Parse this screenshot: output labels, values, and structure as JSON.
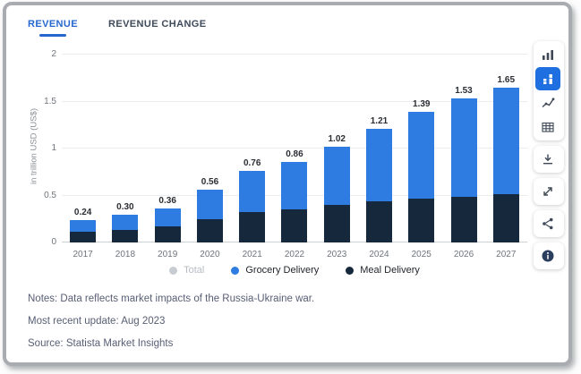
{
  "tabs": [
    {
      "label": "REVENUE",
      "active": true
    },
    {
      "label": "REVENUE CHANGE",
      "active": false
    }
  ],
  "chart_data": {
    "type": "bar",
    "stacked": true,
    "title": "",
    "ylabel": "in trillion USD (US$)",
    "categories": [
      "2017",
      "2018",
      "2019",
      "2020",
      "2021",
      "2022",
      "2023",
      "2024",
      "2025",
      "2026",
      "2027"
    ],
    "series": [
      {
        "name": "Meal Delivery",
        "color": "#16283c",
        "values": [
          0.11,
          0.13,
          0.17,
          0.25,
          0.32,
          0.35,
          0.4,
          0.44,
          0.47,
          0.49,
          0.51
        ]
      },
      {
        "name": "Grocery Delivery",
        "color": "#2e7ce2",
        "values": [
          0.13,
          0.17,
          0.19,
          0.31,
          0.44,
          0.51,
          0.62,
          0.77,
          0.92,
          1.04,
          1.14
        ]
      }
    ],
    "totals": [
      0.24,
      0.3,
      0.36,
      0.56,
      0.76,
      0.86,
      1.02,
      1.21,
      1.39,
      1.53,
      1.65
    ],
    "total_labels": [
      "0.24",
      "0.30",
      "0.36",
      "0.56",
      "0.76",
      "0.86",
      "1.02",
      "1.21",
      "1.39",
      "1.53",
      "1.65"
    ],
    "ylim": [
      0,
      2
    ],
    "yticks": [
      0,
      0.5,
      1,
      1.5,
      2
    ],
    "ytick_labels": [
      "0",
      "0.5",
      "1",
      "1.5",
      "2"
    ],
    "grid": true,
    "legend_position": "bottom",
    "legend": [
      {
        "label": "Total",
        "color": "#c7ccd2",
        "muted": true
      },
      {
        "label": "Grocery Delivery",
        "color": "#2e7ce2",
        "muted": false
      },
      {
        "label": "Meal Delivery",
        "color": "#16283c",
        "muted": false
      }
    ]
  },
  "footer": {
    "notes": "Notes: Data reflects market impacts of the Russia-Ukraine war.",
    "update": "Most recent update: Aug 2023",
    "source": "Source: Statista Market Insights"
  },
  "toolbar": {
    "active_icon": "stacked-bar-chart-icon",
    "icons": [
      "column-chart-icon",
      "stacked-bar-chart-icon",
      "line-chart-icon",
      "table-icon",
      "download-icon",
      "fullscreen-icon",
      "share-icon",
      "info-icon"
    ]
  },
  "colors": {
    "accent_blue": "#2e7ce2",
    "navy": "#16283c",
    "tab_active_blue": "#2667cf",
    "active_tool_bg": "#1f6fe0"
  }
}
